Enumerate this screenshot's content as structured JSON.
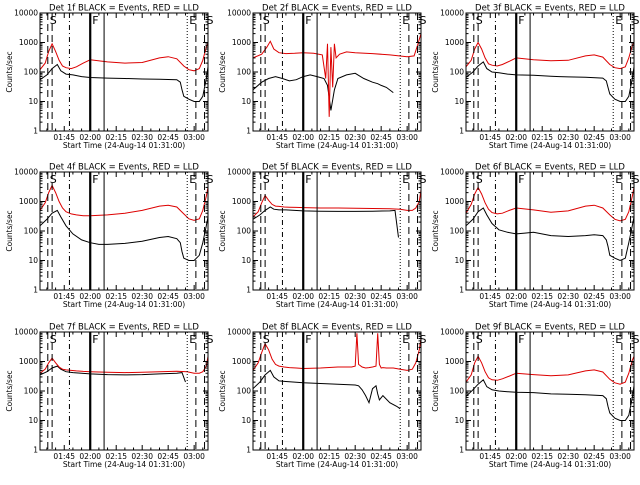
{
  "figure": {
    "background": "#ffffff",
    "colors": {
      "events": "#000000",
      "lld": "#dd0000"
    },
    "x_tick_labels": [
      "01:45",
      "02:00",
      "02:15",
      "02:30",
      "02:45",
      "03:00"
    ],
    "x_tick_minutes": [
      105,
      120,
      135,
      150,
      165,
      180
    ],
    "x_range_minutes": [
      91,
      188
    ],
    "y_tick_labels": [
      "1",
      "10",
      "100",
      "1000",
      "10000"
    ],
    "x_label": "Start Time (24-Aug-14 01:31:00)",
    "y_label": "Counts/sec",
    "markers": [
      {
        "label": "S",
        "t": 95.5,
        "style": "long-dash"
      },
      {
        "label": "",
        "t": 98,
        "style": "long-dash"
      },
      {
        "label": "",
        "t": 108,
        "style": "dash-dot"
      },
      {
        "label": "F",
        "t": 120,
        "style": "thick-solid"
      },
      {
        "label": "",
        "t": 128,
        "style": "solid"
      },
      {
        "label": "E",
        "t": 176,
        "style": "dotted"
      },
      {
        "label": "",
        "t": 181,
        "style": "long-dash"
      },
      {
        "label": "S",
        "t": 186,
        "style": "long-dash"
      }
    ]
  },
  "chart_data": [
    {
      "type": "line",
      "title": "Det 1f BLACK = Events, RED = LLD",
      "ylim": [
        1,
        10000
      ],
      "y_scale": "log",
      "series": [
        {
          "name": "Events",
          "x": [
            91,
            95,
            98,
            101,
            103,
            106,
            110,
            115,
            120,
            130,
            140,
            150,
            160,
            170,
            172,
            173,
            174,
            177,
            180,
            183,
            185,
            187,
            188
          ],
          "y": [
            55,
            80,
            130,
            180,
            110,
            85,
            80,
            70,
            65,
            62,
            60,
            58,
            57,
            55,
            45,
            25,
            15,
            12,
            10,
            10,
            15,
            60,
            150
          ]
        },
        {
          "name": "LLD",
          "x": [
            91,
            94,
            96,
            98,
            100,
            102,
            104,
            106,
            109,
            112,
            116,
            120,
            130,
            140,
            150,
            160,
            165,
            170,
            174,
            177,
            180,
            183,
            185,
            187,
            188
          ],
          "y": [
            120,
            200,
            500,
            900,
            500,
            250,
            160,
            140,
            130,
            150,
            200,
            260,
            220,
            200,
            210,
            300,
            330,
            280,
            160,
            120,
            110,
            130,
            250,
            700,
            1000
          ]
        }
      ]
    },
    {
      "type": "line",
      "title": "Det 2f BLACK = Events, RED = LLD",
      "ylim": [
        1,
        10000
      ],
      "y_scale": "log",
      "series": [
        {
          "name": "Events",
          "x": [
            91,
            96,
            100,
            104,
            108,
            112,
            116,
            120,
            124,
            128,
            132,
            134,
            136,
            138,
            140,
            145,
            150,
            155,
            160,
            163,
            165,
            168,
            172
          ],
          "y": [
            25,
            45,
            60,
            70,
            60,
            50,
            55,
            70,
            80,
            70,
            60,
            35,
            5,
            25,
            60,
            80,
            90,
            60,
            45,
            40,
            35,
            30,
            20
          ]
        },
        {
          "name": "LLD",
          "x": [
            91,
            96,
            99,
            101,
            103,
            106,
            110,
            115,
            120,
            126,
            131,
            133,
            134,
            135,
            136,
            137,
            138,
            139,
            141,
            145,
            150,
            160,
            170,
            180,
            184,
            186,
            188
          ],
          "y": [
            300,
            400,
            700,
            1100,
            600,
            450,
            420,
            430,
            450,
            430,
            380,
            60,
            900,
            3,
            700,
            30,
            900,
            300,
            400,
            480,
            450,
            420,
            380,
            330,
            350,
            800,
            2000
          ]
        }
      ]
    },
    {
      "type": "line",
      "title": "Det 3f BLACK = Events, RED = LLD",
      "ylim": [
        1,
        10000
      ],
      "y_scale": "log",
      "series": [
        {
          "name": "Events",
          "x": [
            91,
            95,
            98,
            101,
            103,
            106,
            110,
            115,
            120,
            130,
            140,
            145,
            150,
            160,
            170,
            172,
            173,
            174,
            177,
            180,
            183,
            185,
            187,
            188
          ],
          "y": [
            65,
            100,
            160,
            220,
            130,
            100,
            95,
            85,
            80,
            78,
            72,
            70,
            68,
            66,
            62,
            50,
            30,
            18,
            12,
            10,
            10,
            15,
            60,
            150
          ]
        },
        {
          "name": "LLD",
          "x": [
            91,
            94,
            96,
            98,
            100,
            102,
            104,
            106,
            109,
            112,
            116,
            120,
            130,
            140,
            150,
            160,
            165,
            170,
            174,
            177,
            180,
            183,
            185,
            187,
            188
          ],
          "y": [
            150,
            250,
            600,
            1000,
            600,
            300,
            190,
            170,
            160,
            180,
            230,
            300,
            260,
            240,
            250,
            350,
            380,
            320,
            180,
            140,
            130,
            150,
            300,
            800,
            1000
          ]
        }
      ]
    },
    {
      "type": "line",
      "title": "Det 4f BLACK = Events, RED = LLD",
      "ylim": [
        1,
        10000
      ],
      "y_scale": "log",
      "series": [
        {
          "name": "Events",
          "x": [
            91,
            95,
            98,
            101,
            103,
            106,
            110,
            115,
            120,
            125,
            130,
            140,
            150,
            160,
            165,
            170,
            172,
            173,
            174,
            177,
            180,
            183,
            185,
            187,
            188
          ],
          "y": [
            150,
            250,
            400,
            500,
            300,
            150,
            80,
            50,
            40,
            35,
            35,
            38,
            45,
            60,
            65,
            55,
            40,
            20,
            12,
            10,
            10,
            15,
            40,
            150,
            300
          ]
        },
        {
          "name": "LLD",
          "x": [
            91,
            94,
            96,
            98,
            100,
            102,
            104,
            106,
            109,
            112,
            116,
            120,
            130,
            140,
            150,
            160,
            165,
            170,
            174,
            177,
            180,
            183,
            185,
            187,
            188
          ],
          "y": [
            500,
            900,
            2000,
            3500,
            2000,
            1000,
            600,
            450,
            380,
            350,
            330,
            330,
            350,
            400,
            500,
            700,
            750,
            650,
            380,
            260,
            230,
            260,
            500,
            1500,
            3000
          ]
        }
      ]
    },
    {
      "type": "line",
      "title": "Det 5f BLACK = Events, RED = LLD",
      "ylim": [
        1,
        10000
      ],
      "y_scale": "log",
      "series": [
        {
          "name": "Events",
          "x": [
            91,
            95,
            98,
            101,
            103,
            106,
            110,
            115,
            120,
            130,
            140,
            150,
            160,
            170,
            173,
            175
          ],
          "y": [
            250,
            350,
            500,
            650,
            550,
            520,
            520,
            500,
            480,
            470,
            460,
            460,
            470,
            480,
            500,
            60
          ]
        },
        {
          "name": "LLD",
          "x": [
            91,
            94,
            96,
            98,
            100,
            102,
            104,
            106,
            109,
            112,
            116,
            120,
            130,
            140,
            150,
            160,
            170,
            176,
            180,
            183,
            185,
            187,
            188
          ],
          "y": [
            300,
            450,
            900,
            1600,
            1100,
            800,
            700,
            680,
            650,
            640,
            630,
            620,
            600,
            600,
            590,
            580,
            570,
            550,
            500,
            500,
            600,
            1000,
            2500
          ]
        }
      ]
    },
    {
      "type": "line",
      "title": "Det 6f BLACK = Events, RED = LLD",
      "ylim": [
        1,
        10000
      ],
      "y_scale": "log",
      "series": [
        {
          "name": "Events",
          "x": [
            91,
            95,
            98,
            101,
            103,
            106,
            110,
            115,
            120,
            125,
            130,
            140,
            150,
            160,
            165,
            170,
            172,
            173,
            174,
            177,
            180,
            183,
            185,
            187,
            188
          ],
          "y": [
            150,
            250,
            450,
            600,
            350,
            180,
            110,
            90,
            80,
            85,
            90,
            70,
            65,
            70,
            75,
            70,
            50,
            30,
            15,
            12,
            10,
            12,
            40,
            150,
            300
          ]
        },
        {
          "name": "LLD",
          "x": [
            91,
            94,
            96,
            98,
            100,
            102,
            104,
            106,
            109,
            112,
            116,
            120,
            130,
            140,
            150,
            160,
            165,
            170,
            174,
            177,
            180,
            183,
            185,
            187,
            188
          ],
          "y": [
            400,
            800,
            1800,
            3000,
            1800,
            900,
            550,
            420,
            380,
            400,
            500,
            600,
            520,
            430,
            480,
            700,
            750,
            600,
            350,
            250,
            220,
            250,
            450,
            1500,
            3000
          ]
        }
      ]
    },
    {
      "type": "line",
      "title": "Det 7f BLACK = Events, RED = LLD",
      "ylim": [
        1,
        10000
      ],
      "y_scale": "log",
      "series": [
        {
          "name": "Events",
          "x": [
            91,
            95,
            98,
            101,
            103,
            106,
            110,
            115,
            120,
            130,
            140,
            150,
            160,
            170,
            173,
            175
          ],
          "y": [
            350,
            450,
            600,
            700,
            550,
            450,
            420,
            400,
            380,
            360,
            350,
            360,
            380,
            400,
            420,
            200
          ]
        },
        {
          "name": "LLD",
          "x": [
            91,
            94,
            96,
            98,
            100,
            102,
            104,
            106,
            109,
            112,
            116,
            120,
            130,
            140,
            150,
            160,
            170,
            176,
            180,
            183,
            185,
            187,
            188
          ],
          "y": [
            400,
            550,
            900,
            1300,
            900,
            650,
            550,
            520,
            500,
            480,
            460,
            450,
            430,
            420,
            430,
            450,
            470,
            450,
            400,
            400,
            450,
            700,
            1500
          ]
        }
      ]
    },
    {
      "type": "line",
      "title": "Det 8f BLACK = Events, RED = LLD",
      "ylim": [
        1,
        10000
      ],
      "y_scale": "log",
      "series": [
        {
          "name": "Events",
          "x": [
            91,
            95,
            98,
            101,
            103,
            106,
            110,
            115,
            120,
            130,
            140,
            150,
            152,
            154,
            156,
            158,
            160,
            162,
            163,
            164,
            166,
            170,
            174,
            176
          ],
          "y": [
            120,
            200,
            350,
            500,
            300,
            220,
            210,
            200,
            190,
            180,
            170,
            160,
            150,
            110,
            70,
            40,
            120,
            150,
            80,
            50,
            70,
            40,
            30,
            25
          ]
        },
        {
          "name": "LLD",
          "x": [
            91,
            94,
            96,
            98,
            100,
            102,
            104,
            106,
            109,
            112,
            116,
            120,
            130,
            140,
            148,
            150,
            151,
            152,
            154,
            156,
            158,
            160,
            162,
            163,
            164,
            165,
            166,
            168,
            172,
            176,
            180,
            183,
            185,
            187,
            188
          ],
          "y": [
            500,
            900,
            2000,
            4000,
            2500,
            1200,
            800,
            700,
            650,
            620,
            600,
            580,
            600,
            650,
            650,
            700,
            9000,
            800,
            650,
            600,
            620,
            650,
            700,
            9000,
            800,
            600,
            620,
            600,
            600,
            550,
            500,
            550,
            900,
            2500,
            6000
          ]
        }
      ]
    },
    {
      "type": "line",
      "title": "Det 9f BLACK = Events, RED = LLD",
      "ylim": [
        1,
        10000
      ],
      "y_scale": "log",
      "series": [
        {
          "name": "Events",
          "x": [
            91,
            95,
            98,
            101,
            103,
            106,
            110,
            115,
            120,
            130,
            140,
            150,
            160,
            170,
            172,
            173,
            174,
            177,
            180,
            183,
            185,
            187,
            188
          ],
          "y": [
            65,
            110,
            170,
            240,
            140,
            110,
            100,
            95,
            90,
            88,
            80,
            78,
            75,
            70,
            55,
            30,
            18,
            12,
            10,
            10,
            15,
            60,
            150
          ]
        },
        {
          "name": "LLD",
          "x": [
            91,
            94,
            96,
            98,
            100,
            102,
            104,
            106,
            109,
            112,
            116,
            120,
            130,
            140,
            150,
            160,
            165,
            170,
            174,
            177,
            180,
            183,
            185,
            187,
            188
          ],
          "y": [
            200,
            350,
            900,
            1500,
            900,
            450,
            280,
            240,
            230,
            260,
            320,
            400,
            360,
            330,
            350,
            480,
            520,
            440,
            250,
            190,
            170,
            200,
            400,
            1100,
            1500
          ]
        }
      ]
    }
  ]
}
